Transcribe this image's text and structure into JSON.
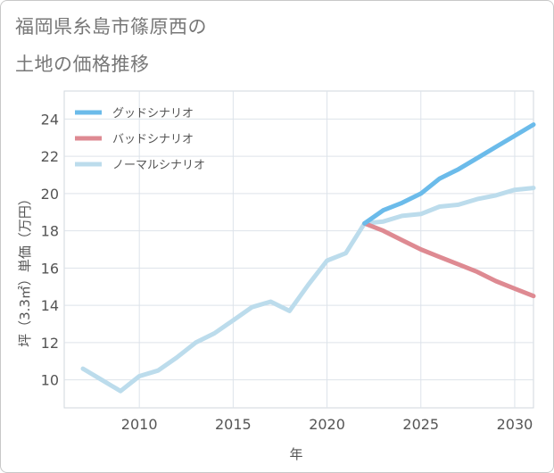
{
  "title_lines": [
    "福岡県糸島市篠原西の",
    "土地の価格推移"
  ],
  "chart_data": {
    "type": "line",
    "title": "福岡県糸島市篠原西の土地の価格推移",
    "xlabel": "年",
    "ylabel": "坪（3.3㎡）単価（万円）",
    "xlim": [
      2006,
      2031
    ],
    "ylim": [
      8.5,
      25.5
    ],
    "xticks": [
      2010,
      2015,
      2020,
      2025,
      2030
    ],
    "yticks": [
      10,
      12,
      14,
      16,
      18,
      20,
      22,
      24
    ],
    "grid": true,
    "legend_position": "top-left",
    "series": [
      {
        "name": "グッドシナリオ",
        "color": "#6bbbea",
        "x": [
          2022,
          2023,
          2024,
          2025,
          2026,
          2027,
          2028,
          2029,
          2030,
          2031
        ],
        "y": [
          18.4,
          19.1,
          19.5,
          20.0,
          20.8,
          21.3,
          21.9,
          22.5,
          23.1,
          23.7
        ]
      },
      {
        "name": "バッドシナリオ",
        "color": "#de8a92",
        "x": [
          2022,
          2023,
          2024,
          2025,
          2026,
          2027,
          2028,
          2029,
          2030,
          2031
        ],
        "y": [
          18.4,
          18.0,
          17.5,
          17.0,
          16.6,
          16.2,
          15.8,
          15.3,
          14.9,
          14.5
        ]
      },
      {
        "name": "ノーマルシナリオ",
        "color": "#bcdcec",
        "x": [
          2007,
          2008,
          2009,
          2010,
          2011,
          2012,
          2013,
          2014,
          2015,
          2016,
          2017,
          2018,
          2019,
          2020,
          2021,
          2022,
          2023,
          2024,
          2025,
          2026,
          2027,
          2028,
          2029,
          2030,
          2031
        ],
        "y": [
          10.6,
          10.0,
          9.4,
          10.2,
          10.5,
          11.2,
          12.0,
          12.5,
          13.2,
          13.9,
          14.2,
          13.7,
          15.1,
          16.4,
          16.8,
          18.4,
          18.5,
          18.8,
          18.9,
          19.3,
          19.4,
          19.7,
          19.9,
          20.2,
          20.3
        ]
      }
    ]
  }
}
